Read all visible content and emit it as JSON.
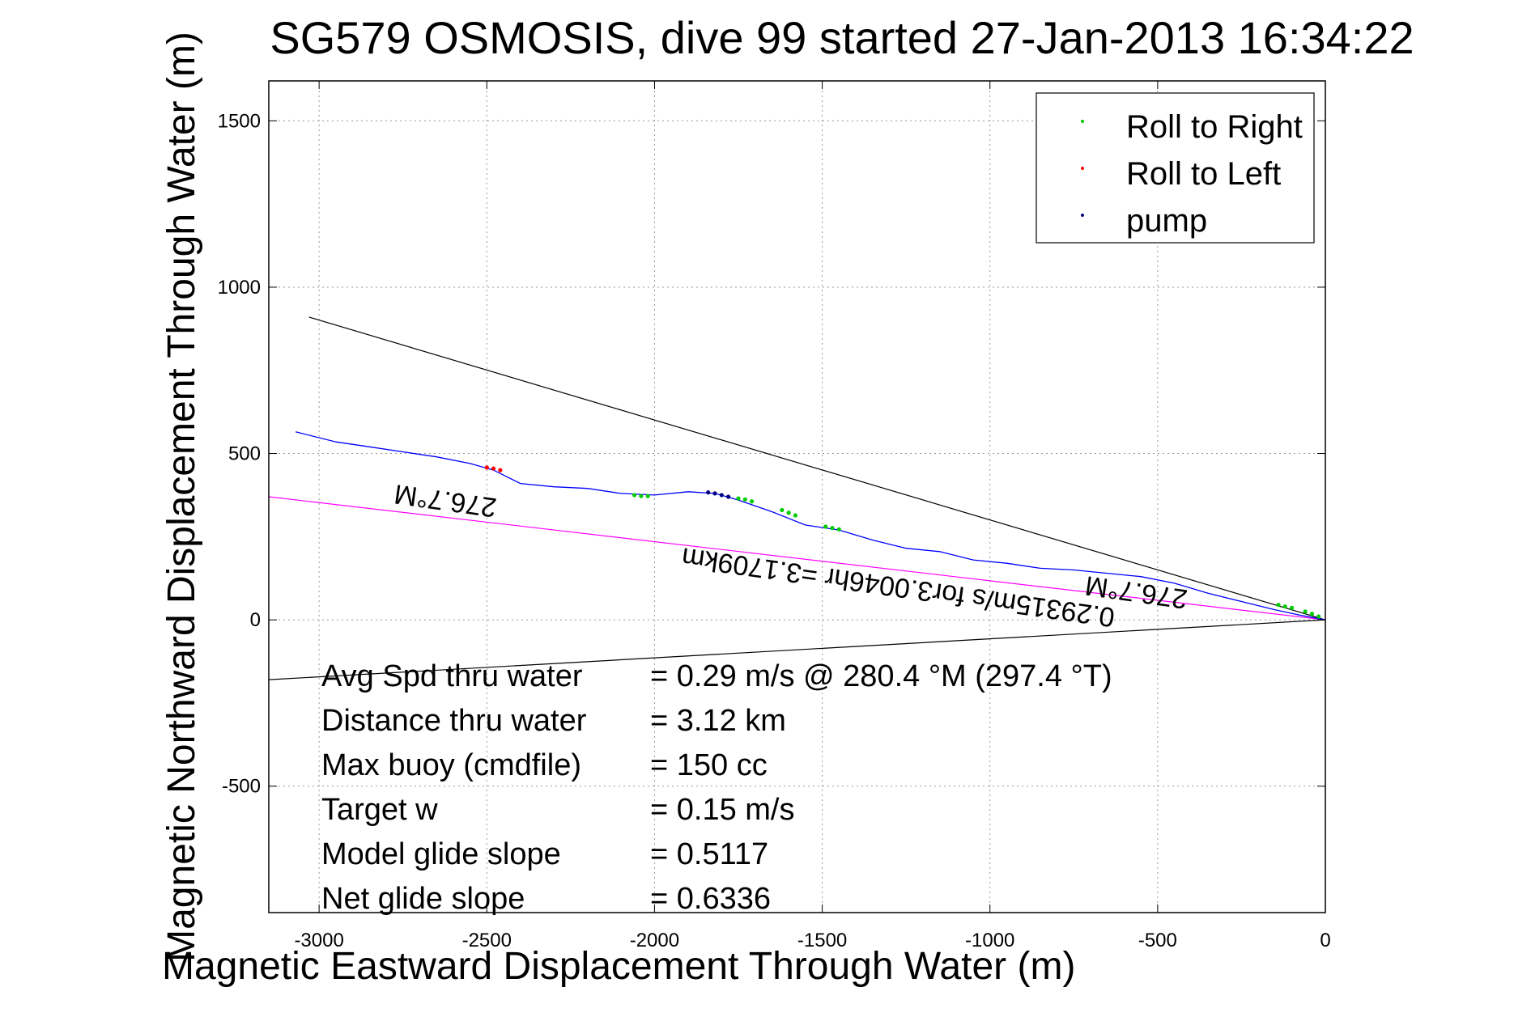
{
  "chart_data": {
    "type": "line",
    "title": "SG579 OSMOSIS, dive 99 started 27-Jan-2013 16:34:22",
    "xlabel": "Magnetic Eastward Displacement Through Water (m)",
    "ylabel": "Magnetic Northward Displacement Through Water (m)",
    "xlim": [
      -3150,
      0
    ],
    "ylim": [
      -880,
      1620
    ],
    "xticks": [
      -3000,
      -2500,
      -2000,
      -1500,
      -1000,
      -500,
      0
    ],
    "yticks": [
      -500,
      0,
      500,
      1000,
      1500
    ],
    "xtick_labels": [
      "-3000",
      "-2500",
      "-2000",
      "-1500",
      "-1000",
      "-500",
      "0"
    ],
    "ytick_labels": [
      "-500",
      "0",
      "500",
      "1000",
      "1500"
    ],
    "grid": true,
    "legend_position": "top-right",
    "legend": [
      {
        "label": "Roll to Right",
        "color": "#00cc00"
      },
      {
        "label": "Roll to Left",
        "color": "#ff0000"
      },
      {
        "label": "pump",
        "color": "#000080"
      }
    ],
    "series": [
      {
        "name": "track",
        "color": "#0000ff",
        "x": [
          -3070,
          -2950,
          -2850,
          -2750,
          -2650,
          -2550,
          -2480,
          -2400,
          -2300,
          -2200,
          -2100,
          -2000,
          -1900,
          -1820,
          -1750,
          -1650,
          -1550,
          -1450,
          -1350,
          -1250,
          -1150,
          -1050,
          -950,
          -850,
          -750,
          -650,
          -550,
          -450,
          -350,
          -250,
          -150,
          -80,
          0
        ],
        "y": [
          565,
          535,
          520,
          505,
          490,
          470,
          450,
          410,
          400,
          395,
          380,
          375,
          385,
          380,
          360,
          325,
          285,
          270,
          240,
          215,
          205,
          180,
          170,
          155,
          150,
          140,
          130,
          110,
          80,
          55,
          30,
          15,
          0
        ]
      }
    ],
    "markers": [
      {
        "name": "Roll to Right",
        "color": "#00cc00",
        "x": [
          -2060,
          -2040,
          -2020,
          -1750,
          -1730,
          -1710,
          -1620,
          -1600,
          -1580,
          -1490,
          -1470,
          -1450,
          -140,
          -120,
          -100,
          -60,
          -40,
          -20
        ],
        "y": [
          375,
          372,
          372,
          365,
          362,
          356,
          330,
          322,
          314,
          280,
          276,
          272,
          45,
          40,
          36,
          25,
          18,
          10
        ]
      },
      {
        "name": "Roll to Left",
        "color": "#ff0000",
        "x": [
          -2500,
          -2480,
          -2460
        ],
        "y": [
          458,
          455,
          450
        ]
      },
      {
        "name": "pump",
        "color": "#000080",
        "x": [
          -1840,
          -1820,
          -1800,
          -1780
        ],
        "y": [
          383,
          380,
          375,
          370
        ]
      }
    ],
    "lines": [
      {
        "name": "upper heading bound",
        "color": "#000000",
        "x": [
          -3030,
          0
        ],
        "y": [
          910,
          0
        ]
      },
      {
        "name": "lower heading bound",
        "color": "#000000",
        "x": [
          -3150,
          0
        ],
        "y": [
          -180,
          0
        ]
      },
      {
        "name": "average course",
        "color": "#ff00ff",
        "x": [
          -3150,
          0
        ],
        "y": [
          370,
          0
        ]
      }
    ],
    "annotations": [
      {
        "text": "276.7°M",
        "x": -2620,
        "y": 385,
        "rotation": 188
      },
      {
        "text": "276.7°M",
        "x": -560,
        "y": 110,
        "rotation": 188
      },
      {
        "text": "0.29315m/s for3.0046hr =3.1709km",
        "x": -1270,
        "y": 125,
        "rotation": 188
      }
    ],
    "summary_labels": [
      "Avg Spd thru water",
      "Distance thru water",
      "Max buoy (cmdfile)",
      "Target w",
      "Model glide slope",
      "Net glide slope"
    ],
    "summary_values": [
      "=  0.29 m/s @ 280.4 °M (297.4 °T)",
      "=  3.12 km",
      "= 150 cc",
      "= 0.15 m/s",
      "= 0.5117",
      "= 0.6336"
    ]
  }
}
